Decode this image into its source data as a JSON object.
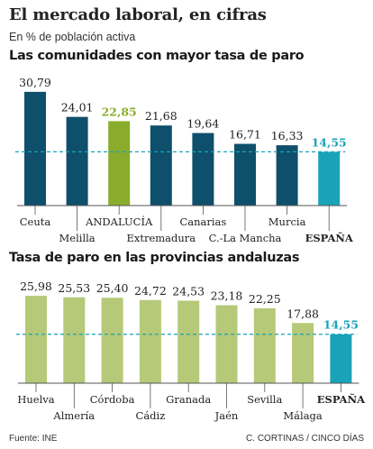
{
  "header": {
    "title": "El mercado laboral, en cifras",
    "subtitle": "En % de población activa"
  },
  "footer": {
    "source": "Fuente: INE",
    "credit": "C. CORTINAS / CINCO DÍAS"
  },
  "colors": {
    "dark_bar": "#0e4f6b",
    "highlight_green": "#8aac2c",
    "spain_bar": "#1aa3b8",
    "light_green_bar": "#b5c978",
    "reference_line": "#1aa3b8",
    "axis": "#555555"
  },
  "chart_data": [
    {
      "type": "bar",
      "title": "Las comunidades con mayor tasa de paro",
      "categories": [
        "Ceuta",
        "Melilla",
        "ANDALUCÍA",
        "Extremadura",
        "Canarias",
        "C.-La Mancha",
        "Murcia",
        "ESPAÑA"
      ],
      "values": [
        30.79,
        24.01,
        22.85,
        21.68,
        19.64,
        16.71,
        16.33,
        14.55
      ],
      "value_labels": [
        "30,79",
        "24,01",
        "22,85",
        "21,68",
        "19,64",
        "16,71",
        "16,33",
        "14,55"
      ],
      "highlight": {
        "ANDALUCÍA": "green",
        "ESPAÑA": "teal"
      },
      "reference_line": 14.55,
      "label_positions": "alternating below axis",
      "grid": false,
      "ylim": [
        0,
        31
      ]
    },
    {
      "type": "bar",
      "title": "Tasa de paro en las provincias andaluzas",
      "categories": [
        "Huelva",
        "Almería",
        "Córdoba",
        "Cádiz",
        "Granada",
        "Jaén",
        "Sevilla",
        "Málaga",
        "ESPAÑA"
      ],
      "values": [
        25.98,
        25.53,
        25.4,
        24.72,
        24.53,
        23.18,
        22.25,
        17.88,
        14.55
      ],
      "value_labels": [
        "25,98",
        "25,53",
        "25,40",
        "24,72",
        "24,53",
        "23,18",
        "22,25",
        "17,88",
        "14,55"
      ],
      "highlight": {
        "ESPAÑA": "teal"
      },
      "reference_line": 14.55,
      "label_positions": "alternating below axis",
      "grid": false,
      "ylim": [
        0,
        26
      ]
    }
  ]
}
